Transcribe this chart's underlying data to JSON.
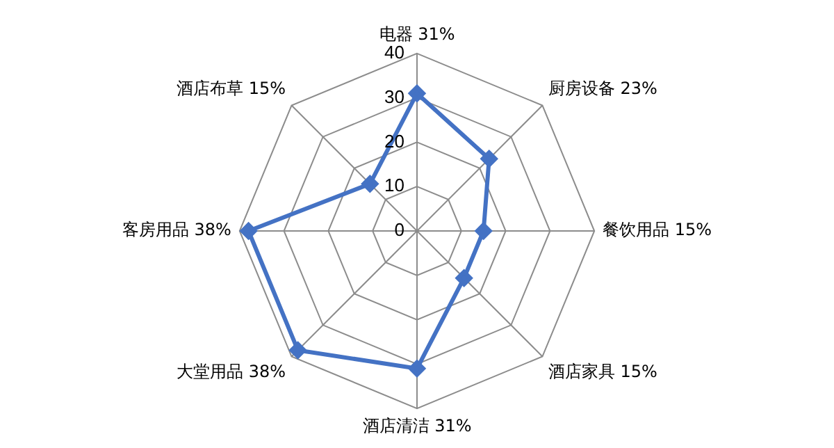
{
  "chart_data": {
    "type": "radar",
    "categories": [
      "电器 31%",
      "厨房设备 23%",
      "餐饮用品 15%",
      "酒店家具 15%",
      "酒店清洁 31%",
      "大堂用品 38%",
      "客房用品 38%",
      "酒店布草 15%"
    ],
    "series": [
      {
        "color": "#4472c4",
        "values": [
          31,
          23,
          15,
          15,
          31,
          38,
          38,
          15
        ]
      }
    ],
    "ylim": [
      0,
      40
    ],
    "yticks": [
      0,
      10,
      20,
      30,
      40
    ],
    "grid": true,
    "legend": false,
    "marker": "diamond"
  }
}
